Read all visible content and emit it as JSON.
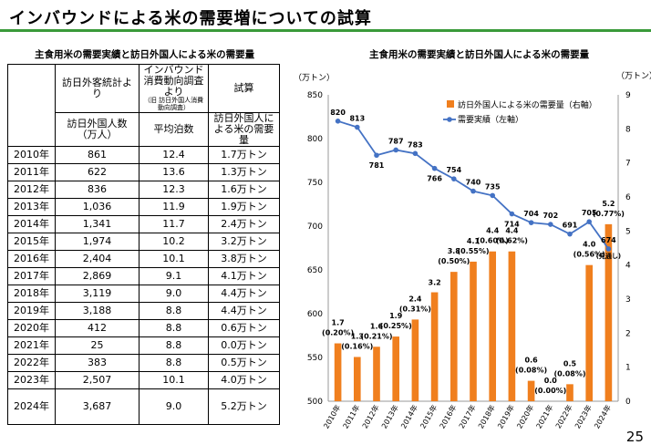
{
  "page": {
    "title": "インバウンドによる米の需要増についての試算",
    "page_number": "25"
  },
  "table": {
    "subtitle": "主食用米の需要実績と訪日外国人による米の需要量",
    "header": {
      "group1": "訪日外客統計より",
      "group2_main": "インバウンド消費動向調査より",
      "group2_note": "（旧 訪日外国人消費動向調査）",
      "group3": "試算",
      "col1": "訪日外国人数（万人）",
      "col2": "平均泊数",
      "col3": "訪日外国人による米の需要量"
    },
    "rows": [
      {
        "year": "2010年",
        "visitors": "861",
        "nights": "12.4",
        "demand": "1.7万トン"
      },
      {
        "year": "2011年",
        "visitors": "622",
        "nights": "13.6",
        "demand": "1.3万トン"
      },
      {
        "year": "2012年",
        "visitors": "836",
        "nights": "12.3",
        "demand": "1.6万トン"
      },
      {
        "year": "2013年",
        "visitors": "1,036",
        "nights": "11.9",
        "demand": "1.9万トン"
      },
      {
        "year": "2014年",
        "visitors": "1,341",
        "nights": "11.7",
        "demand": "2.4万トン"
      },
      {
        "year": "2015年",
        "visitors": "1,974",
        "nights": "10.2",
        "demand": "3.2万トン"
      },
      {
        "year": "2016年",
        "visitors": "2,404",
        "nights": "10.1",
        "demand": "3.8万トン"
      },
      {
        "year": "2017年",
        "visitors": "2,869",
        "nights": "9.1",
        "demand": "4.1万トン"
      },
      {
        "year": "2018年",
        "visitors": "3,119",
        "nights": "9.0",
        "demand": "4.4万トン"
      },
      {
        "year": "2019年",
        "visitors": "3,188",
        "nights": "8.8",
        "demand": "4.4万トン"
      },
      {
        "year": "2020年",
        "visitors": "412",
        "nights": "8.8",
        "demand": "0.6万トン"
      },
      {
        "year": "2021年",
        "visitors": "25",
        "nights": "8.8",
        "demand": "0.0万トン"
      },
      {
        "year": "2022年",
        "visitors": "383",
        "nights": "8.8",
        "demand": "0.5万トン"
      },
      {
        "year": "2023年",
        "visitors": "2,507",
        "nights": "10.1",
        "demand": "4.0万トン"
      },
      {
        "year": "2024年",
        "visitors": "3,687",
        "nights": "9.0",
        "demand": "5.2万トン"
      }
    ]
  },
  "chart_data": {
    "type": "bar",
    "title": "主食用米の需要実績と訪日外国人による米の需要量",
    "left_unit": "（万トン）",
    "right_unit": "（万トン）",
    "left_ylim": [
      500,
      850
    ],
    "left_ticks": [
      "500",
      "550",
      "600",
      "650",
      "700",
      "750",
      "800",
      "850"
    ],
    "right_ylim": [
      0,
      9
    ],
    "right_ticks": [
      "0",
      "1",
      "2",
      "3",
      "4",
      "5",
      "6",
      "7",
      "8",
      "9"
    ],
    "legend_position": "top-right",
    "grid": false,
    "categories": [
      "2010年",
      "2011年",
      "2012年",
      "2013年",
      "2014年",
      "2015年",
      "2016年",
      "2017年",
      "2018年",
      "2019年",
      "2020年",
      "2021年",
      "2022年",
      "2023年",
      "2024年"
    ],
    "series": [
      {
        "name": "訪日外国人による米の需要量（右軸）",
        "type": "bar",
        "axis": "right",
        "color": "#f07f1e",
        "values": [
          1.7,
          1.3,
          1.6,
          1.9,
          2.4,
          3.2,
          3.8,
          4.1,
          4.4,
          4.4,
          0.6,
          0.0,
          0.5,
          4.0,
          5.2
        ],
        "labels": [
          "1.7",
          "1.3",
          "1.6",
          "1.9",
          "2.4",
          "3.2",
          "3.8",
          "4.1",
          "4.4",
          "4.4",
          "0.6",
          "0.0",
          "0.5",
          "4.0",
          "5.2"
        ],
        "pct_labels": [
          "(0.20%)",
          "(0.16%)",
          "(0.21%)",
          "(0.25%)",
          "(0.31%)",
          "(0.50%)",
          "(0.55%)",
          "(0.60%)",
          "(0.62%)",
          "(0.08%)",
          "(0.00%)",
          "(0.08%)",
          "(0.56%)",
          "(0.77%)"
        ],
        "pct_index": [
          0,
          1,
          2,
          3,
          4,
          6,
          7,
          8,
          9,
          10,
          11,
          12,
          13,
          14
        ]
      },
      {
        "name": "需要実績（左軸）",
        "type": "line",
        "axis": "left",
        "color": "#4472c4",
        "values": [
          820,
          813,
          781,
          787,
          783,
          766,
          754,
          740,
          735,
          714,
          704,
          702,
          691,
          705,
          674
        ],
        "labels": [
          "820",
          "813",
          "781",
          "787",
          "783",
          "766",
          "754",
          "740",
          "735",
          "714",
          "704",
          "702",
          "691",
          "705",
          "674"
        ],
        "extra_label": "(見通し)"
      }
    ]
  }
}
